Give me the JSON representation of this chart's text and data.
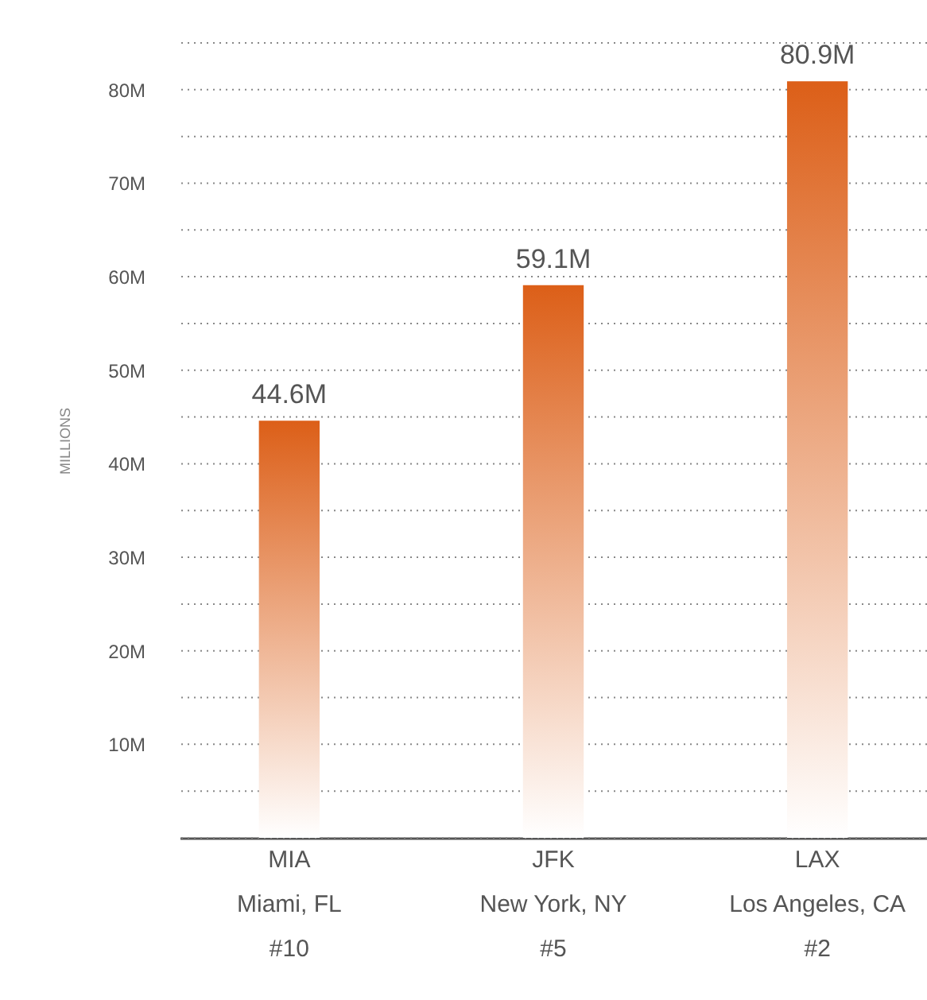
{
  "chart_data": {
    "type": "bar",
    "ylabel": "MILLIONS",
    "categories": [
      "MIA\nMiami, FL\n#10",
      "JFK\nNew York, NY\n#5",
      "LAX\nLos Angeles, CA\n#2"
    ],
    "values": [
      44.6,
      59.1,
      80.9
    ],
    "value_labels": [
      "44.6M",
      "59.1M",
      "80.9M"
    ],
    "color": "#dc5f18",
    "ylim": [
      0,
      85
    ],
    "yticks": [
      {
        "value": 0,
        "label": null
      },
      {
        "value": 5,
        "label": null
      },
      {
        "value": 10,
        "label": "10M"
      },
      {
        "value": 15,
        "label": null
      },
      {
        "value": 20,
        "label": "20M"
      },
      {
        "value": 25,
        "label": null
      },
      {
        "value": 30,
        "label": "30M"
      },
      {
        "value": 35,
        "label": null
      },
      {
        "value": 40,
        "label": "40M"
      },
      {
        "value": 45,
        "label": null
      },
      {
        "value": 50,
        "label": "50M"
      },
      {
        "value": 55,
        "label": null
      },
      {
        "value": 60,
        "label": "60M"
      },
      {
        "value": 65,
        "label": null
      },
      {
        "value": 70,
        "label": "70M"
      },
      {
        "value": 75,
        "label": null
      },
      {
        "value": 80,
        "label": "80M"
      },
      {
        "value": 85,
        "label": null
      }
    ],
    "grid": "y"
  }
}
